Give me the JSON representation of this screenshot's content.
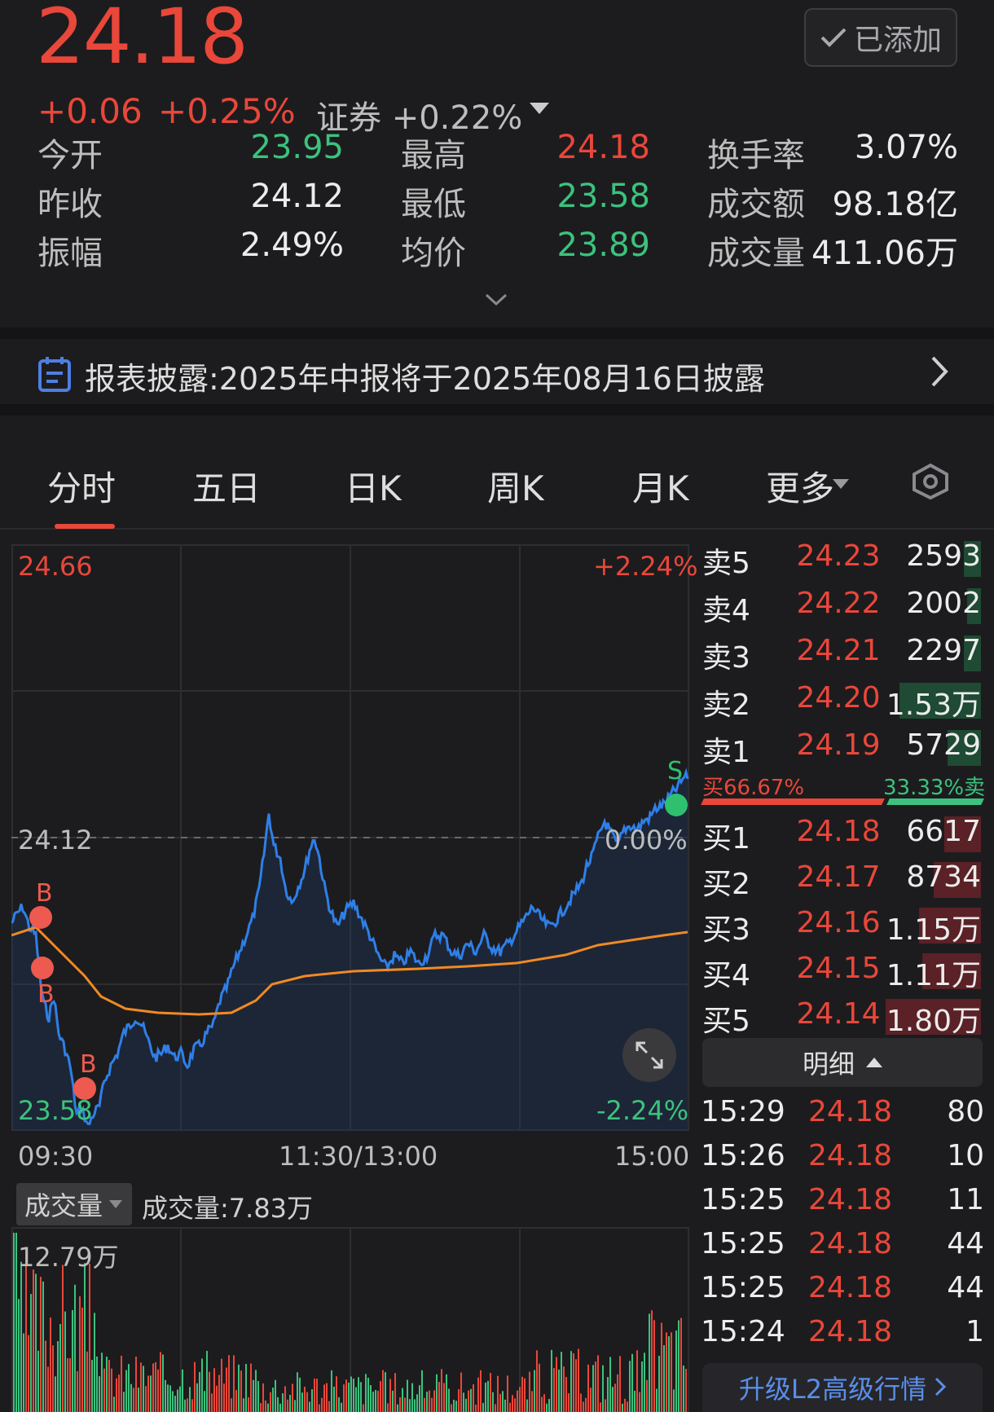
{
  "quote": {
    "price": "24.18",
    "change": "+0.06",
    "change_pct": "+0.25%",
    "added_label": "已添加",
    "sector_label": "证券 +0.22%"
  },
  "stats": [
    {
      "label": "今开",
      "value": "23.95",
      "color": "green"
    },
    {
      "label": "最高",
      "value": "24.18",
      "color": "red"
    },
    {
      "label": "换手率",
      "value": "3.07%",
      "color": "white"
    },
    {
      "label": "昨收",
      "value": "24.12",
      "color": "white"
    },
    {
      "label": "最低",
      "value": "23.58",
      "color": "green"
    },
    {
      "label": "成交额",
      "value": "98.18亿",
      "color": "white"
    },
    {
      "label": "振幅",
      "value": "2.49%",
      "color": "white"
    },
    {
      "label": "均价",
      "value": "23.89",
      "color": "green"
    },
    {
      "label": "成交量",
      "value": "411.06万",
      "color": "white"
    }
  ],
  "notice": {
    "text": "报表披露:2025年中报将于2025年08月16日披露"
  },
  "tabs": [
    "分时",
    "五日",
    "日K",
    "周K",
    "月K",
    "更多"
  ],
  "chart": {
    "high": "24.66",
    "high_pct": "+2.24%",
    "base": "24.12",
    "base_pct": "0.00%",
    "low": "23.58",
    "low_pct": "-2.24%",
    "time_start": "09:30",
    "time_mid": "11:30/13:00",
    "time_end": "15:00",
    "marker_b": "B",
    "marker_s": "S",
    "volume_tab": "成交量",
    "volume_text": "成交量:7.83万",
    "volume_max": "12.79万"
  },
  "orderbook": {
    "asks": [
      {
        "label": "卖5",
        "price": "24.23",
        "qty": "2593",
        "bar": 0.06
      },
      {
        "label": "卖4",
        "price": "24.22",
        "qty": "2002",
        "bar": 0.05
      },
      {
        "label": "卖3",
        "price": "24.21",
        "qty": "2297",
        "bar": 0.06
      },
      {
        "label": "卖2",
        "price": "24.20",
        "qty": "1.53万",
        "bar": 0.29
      },
      {
        "label": "卖1",
        "price": "24.19",
        "qty": "5729",
        "bar": 0.12
      }
    ],
    "buy_pct": "买66.67%",
    "sell_pct": "33.33%卖",
    "bids": [
      {
        "label": "买1",
        "price": "24.18",
        "qty": "6617",
        "bar": 0.13
      },
      {
        "label": "买2",
        "price": "24.17",
        "qty": "8734",
        "bar": 0.17
      },
      {
        "label": "买3",
        "price": "24.16",
        "qty": "1.15万",
        "bar": 0.22
      },
      {
        "label": "买4",
        "price": "24.15",
        "qty": "1.11万",
        "bar": 0.21
      },
      {
        "label": "买5",
        "price": "24.14",
        "qty": "1.80万",
        "bar": 0.34
      }
    ],
    "detail_label": "明细"
  },
  "trades": [
    {
      "time": "15:29",
      "price": "24.18",
      "qty": "80"
    },
    {
      "time": "15:26",
      "price": "24.18",
      "qty": "10"
    },
    {
      "time": "15:25",
      "price": "24.18",
      "qty": "11"
    },
    {
      "time": "15:25",
      "price": "24.18",
      "qty": "44"
    },
    {
      "time": "15:25",
      "price": "24.18",
      "qty": "44"
    },
    {
      "time": "15:24",
      "price": "24.18",
      "qty": "1"
    }
  ],
  "upgrade_label": "升级L2高级行情",
  "colors": {
    "up": "#e9473a",
    "down": "#3cc27e",
    "line": "#2f7fe8",
    "avg": "#f08a24"
  }
}
